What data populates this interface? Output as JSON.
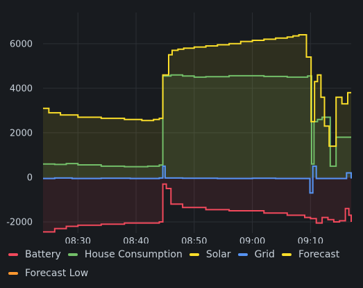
{
  "colors": {
    "background": "#181b1f",
    "grid": "#2c3035",
    "text": "#c7d0d9",
    "battery": "#f2495c",
    "house": "#73bf69",
    "solar": "#fade2a",
    "grid_power": "#5794f2",
    "forecast": "#fade2a",
    "forecast_low": "#ff9830"
  },
  "chart_data": {
    "type": "line",
    "title": "",
    "xlabel": "",
    "ylabel": "",
    "x_time_range": [
      "08:24",
      "09:17"
    ],
    "xlim_minutes": [
      0,
      53
    ],
    "ylim": [
      -2500,
      7400
    ],
    "y_ticks": [
      6000,
      4000,
      2000,
      0,
      -2000
    ],
    "y_tick_labels": [
      "6000",
      "4000",
      "2000",
      "0",
      "-2000"
    ],
    "x_ticks": [
      "08:30",
      "08:40",
      "08:50",
      "09:00",
      "09:10"
    ],
    "grid": true,
    "legend_position": "bottom",
    "line_style": "step",
    "fill_opacity": "low",
    "series": [
      {
        "name": "Battery",
        "color": "#f2495c",
        "x": [
          0,
          2,
          4,
          6,
          10,
          14,
          18,
          20,
          20.6,
          21.2,
          22,
          24,
          28,
          32,
          38,
          42,
          45,
          46,
          47,
          48,
          49,
          50,
          51,
          52,
          52.6,
          53
        ],
        "values": [
          -2450,
          -2300,
          -2200,
          -2150,
          -2100,
          -2050,
          -2050,
          -2000,
          -300,
          -500,
          -1200,
          -1350,
          -1450,
          -1500,
          -1600,
          -1700,
          -1800,
          -1850,
          -2050,
          -1800,
          -1900,
          -2000,
          -1950,
          -1400,
          -1700,
          -2000
        ]
      },
      {
        "name": "House Consumption",
        "color": "#73bf69",
        "x": [
          0,
          2,
          4,
          6,
          10,
          14,
          18,
          20,
          20.6,
          22,
          24,
          26,
          28,
          32,
          38,
          42,
          45.5,
          46.2,
          46.6,
          47.2,
          48,
          49.4,
          50.4,
          51.4,
          53
        ],
        "values": [
          600,
          580,
          620,
          560,
          500,
          480,
          500,
          550,
          4550,
          4600,
          4550,
          4500,
          4520,
          4560,
          4530,
          4500,
          4550,
          600,
          2500,
          2600,
          2700,
          500,
          1800,
          1800,
          1800
        ]
      },
      {
        "name": "Solar",
        "color": "#fade2a",
        "x": [
          0,
          1,
          3,
          6,
          10,
          14,
          17,
          19,
          20,
          20.6,
          21.6,
          22.2,
          23.2,
          24.2,
          26,
          28,
          30,
          32,
          34,
          36,
          38,
          40,
          42,
          43,
          44,
          45.3,
          46.1,
          46.7,
          47.2,
          47.8,
          48.4,
          49.2,
          50.4,
          51.4,
          52.4,
          53
        ],
        "values": [
          3100,
          2900,
          2800,
          2700,
          2650,
          2600,
          2550,
          2600,
          2650,
          4600,
          5500,
          5700,
          5750,
          5800,
          5850,
          5900,
          5950,
          6000,
          6100,
          6150,
          6200,
          6250,
          6300,
          6350,
          6400,
          5400,
          2500,
          4300,
          4600,
          3600,
          2300,
          1400,
          3600,
          3300,
          3800,
          3800
        ]
      },
      {
        "name": "Grid",
        "color": "#5794f2",
        "x": [
          0,
          2,
          5,
          10,
          15,
          20,
          20.6,
          21,
          24,
          30,
          36,
          40,
          45.4,
          45.9,
          46.4,
          47,
          48,
          51.6,
          52.2,
          53
        ],
        "values": [
          -50,
          -30,
          -50,
          -40,
          -50,
          -30,
          500,
          -30,
          -40,
          -50,
          -40,
          -50,
          -50,
          -700,
          500,
          -50,
          -50,
          -50,
          200,
          -50
        ]
      },
      {
        "name": "Forecast",
        "color": "#fade2a",
        "x": [],
        "values": []
      },
      {
        "name": "Forecast Low",
        "color": "#ff9830",
        "x": [],
        "values": []
      }
    ]
  },
  "legend": {
    "items": [
      {
        "label": "Battery",
        "color": "#f2495c"
      },
      {
        "label": "House Consumption",
        "color": "#73bf69"
      },
      {
        "label": "Solar",
        "color": "#fade2a"
      },
      {
        "label": "Grid",
        "color": "#5794f2"
      },
      {
        "label": "Forecast",
        "color": "#fade2a"
      },
      {
        "label": "Forecast Low",
        "color": "#ff9830"
      }
    ]
  }
}
